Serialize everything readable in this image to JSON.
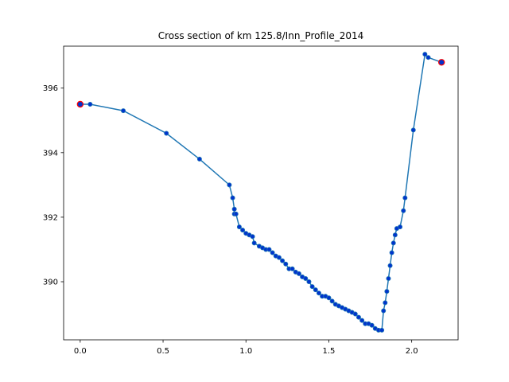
{
  "chart_data": {
    "type": "line",
    "title": "Cross section of km 125.8/Inn_Profile_2014",
    "xlabel": "",
    "ylabel": "",
    "xlim": [
      -0.1,
      2.28
    ],
    "ylim": [
      388.2,
      397.3
    ],
    "xticks": [
      0.0,
      0.5,
      1.0,
      1.5,
      2.0
    ],
    "xtick_labels": [
      "0.0",
      "0.5",
      "1.0",
      "1.5",
      "2.0"
    ],
    "yticks": [
      390,
      392,
      394,
      396
    ],
    "ytick_labels": [
      "390",
      "392",
      "394",
      "396"
    ],
    "grid": false,
    "line_color": "#1f77b4",
    "marker_color": "#0033cc",
    "endpoint_edge_color": "#ff0000",
    "series": [
      {
        "x": [
          0.0,
          0.06,
          0.26,
          0.52,
          0.72,
          0.9,
          0.92,
          0.93,
          0.93,
          0.94,
          0.96,
          0.98,
          1.0,
          1.02,
          1.04,
          1.05,
          1.08,
          1.1,
          1.12,
          1.14,
          1.16,
          1.18,
          1.2,
          1.22,
          1.24,
          1.26,
          1.28,
          1.3,
          1.32,
          1.34,
          1.36,
          1.38,
          1.4,
          1.42,
          1.44,
          1.46,
          1.48,
          1.5,
          1.52,
          1.54,
          1.56,
          1.58,
          1.6,
          1.62,
          1.64,
          1.66,
          1.68,
          1.7,
          1.72,
          1.74,
          1.76,
          1.78,
          1.8,
          1.82,
          1.83,
          1.84,
          1.85,
          1.86,
          1.87,
          1.88,
          1.89,
          1.9,
          1.91,
          1.93,
          1.95,
          1.96,
          2.01,
          2.08,
          2.1,
          2.18
        ],
        "y": [
          395.5,
          395.5,
          395.3,
          394.6,
          393.8,
          393.0,
          392.6,
          392.25,
          392.1,
          392.1,
          391.7,
          391.6,
          391.5,
          391.45,
          391.4,
          391.2,
          391.1,
          391.05,
          391.0,
          391.0,
          390.9,
          390.8,
          390.75,
          390.65,
          390.55,
          390.4,
          390.4,
          390.3,
          390.25,
          390.15,
          390.1,
          390.0,
          389.85,
          389.75,
          389.65,
          389.55,
          389.55,
          389.5,
          389.4,
          389.3,
          389.25,
          389.2,
          389.15,
          389.1,
          389.05,
          389.0,
          388.9,
          388.8,
          388.7,
          388.7,
          388.65,
          388.55,
          388.5,
          388.5,
          389.1,
          389.35,
          389.7,
          390.1,
          390.5,
          390.9,
          391.2,
          391.45,
          391.65,
          391.7,
          392.2,
          392.6,
          394.7,
          397.05,
          396.95,
          396.8
        ]
      }
    ]
  }
}
